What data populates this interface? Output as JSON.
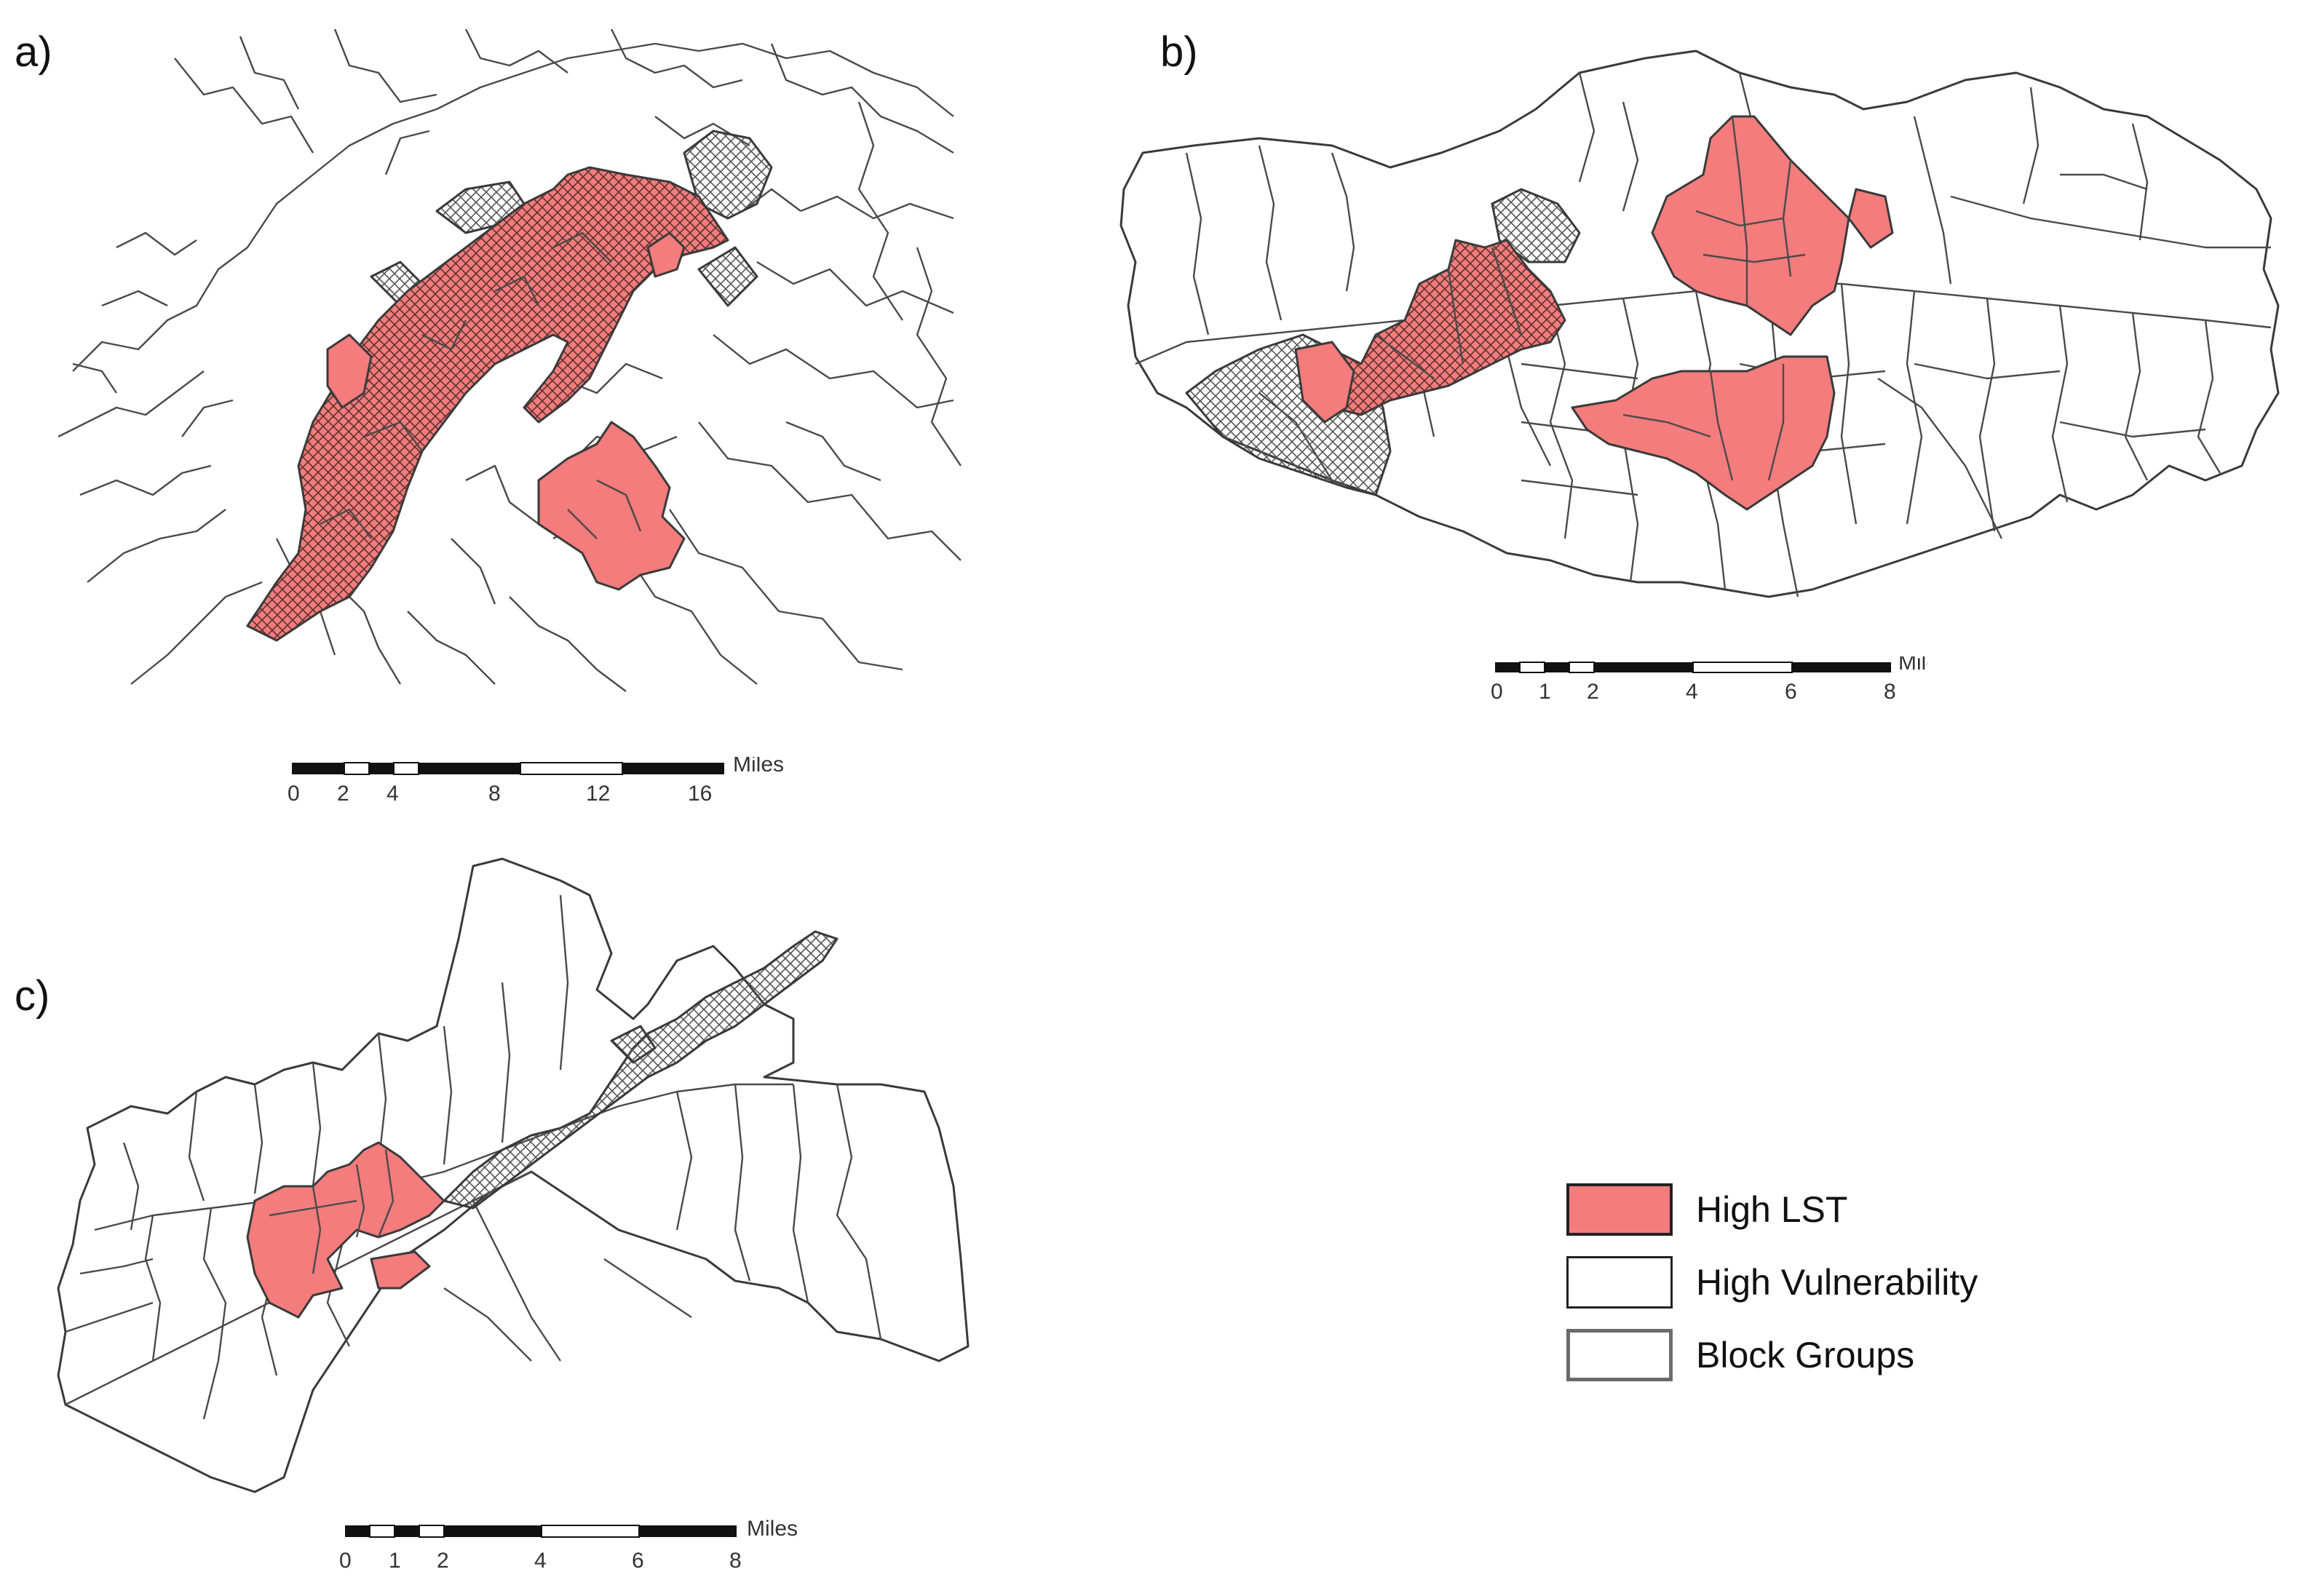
{
  "panels": {
    "a": {
      "label": "a)"
    },
    "b": {
      "label": "b)"
    },
    "c": {
      "label": "c)"
    }
  },
  "scalebars": {
    "a": {
      "unit": "Miles",
      "ticks": [
        "0",
        "2",
        "4",
        "8",
        "12",
        "16"
      ]
    },
    "b": {
      "unit": "Miles",
      "ticks": [
        "0",
        "1",
        "2",
        "4",
        "6",
        "8"
      ]
    },
    "c": {
      "unit": "Miles",
      "ticks": [
        "0",
        "1",
        "2",
        "4",
        "6",
        "8"
      ]
    }
  },
  "legend": {
    "items": [
      {
        "label": "High LST",
        "fill": "#f47c7c",
        "border": "#222222"
      },
      {
        "label": "High Vulnerability",
        "fill": "#ffffff",
        "border": "#222222",
        "pattern": "cross-hatch"
      },
      {
        "label": "Block Groups",
        "fill": "#ffffff",
        "border": "#6b6b6b"
      }
    ]
  },
  "colors": {
    "high_lst": "#f47c7c",
    "hatch": "#555555",
    "outline": "#3a3a3a"
  }
}
